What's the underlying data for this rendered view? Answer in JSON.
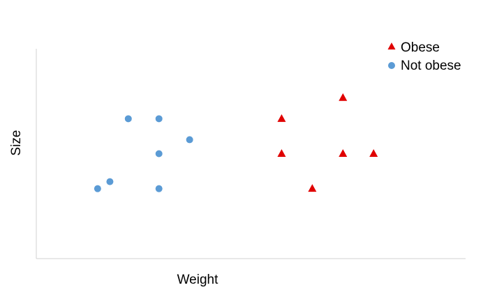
{
  "chart_data": {
    "type": "scatter",
    "title": "",
    "xlabel": "Weight",
    "ylabel": "Size",
    "xlim": [
      0,
      14
    ],
    "ylim": [
      0,
      6
    ],
    "grid": false,
    "legend_position": "top-right",
    "series": [
      {
        "name": "Obese",
        "marker": "triangle",
        "color": "#e00000",
        "points": [
          {
            "x": 8,
            "y": 4
          },
          {
            "x": 8,
            "y": 3
          },
          {
            "x": 9,
            "y": 2
          },
          {
            "x": 10,
            "y": 4.6
          },
          {
            "x": 10,
            "y": 3
          },
          {
            "x": 11,
            "y": 3
          }
        ]
      },
      {
        "name": "Not obese",
        "marker": "circle",
        "color": "#5b9bd5",
        "points": [
          {
            "x": 2,
            "y": 2
          },
          {
            "x": 2.4,
            "y": 2.2
          },
          {
            "x": 3,
            "y": 4
          },
          {
            "x": 4,
            "y": 4
          },
          {
            "x": 4,
            "y": 3
          },
          {
            "x": 4,
            "y": 2
          },
          {
            "x": 5,
            "y": 3.4
          }
        ]
      }
    ]
  }
}
